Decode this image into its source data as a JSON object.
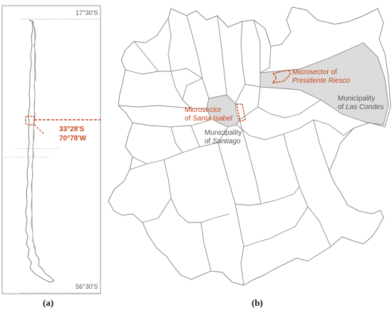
{
  "panel_a": {
    "label": "(a)",
    "top_latitude": "17°30'S",
    "bottom_latitude": "56°30'S",
    "coord_lat": "33°28'S",
    "coord_lon": "70°78'W",
    "watermark_line_1": "— ——— ——————",
    "watermark_line_2": "— ———— —————"
  },
  "panel_b": {
    "label": "(b)",
    "microsector_presidente_riesco": {
      "line1": "Microsector of",
      "line2": "Presidente Riesco"
    },
    "microsector_santa_isabel": {
      "line1": "Microsector",
      "line2_prefix": "of ",
      "line2_italic": "Santa Isabel"
    },
    "municipality_las_condes": {
      "line1": "Municipality",
      "line2_prefix": "of ",
      "line2_italic": "Las Condes"
    },
    "municipality_santiago": {
      "line1": "Municipality",
      "line2_prefix": "of ",
      "line2_italic": "Santiago"
    }
  },
  "colors": {
    "accent_orange": "#c5471b",
    "highlight_fill": "#dcdcdc",
    "boundary_line": "#8a8a8a",
    "label_dark": "#555555"
  }
}
